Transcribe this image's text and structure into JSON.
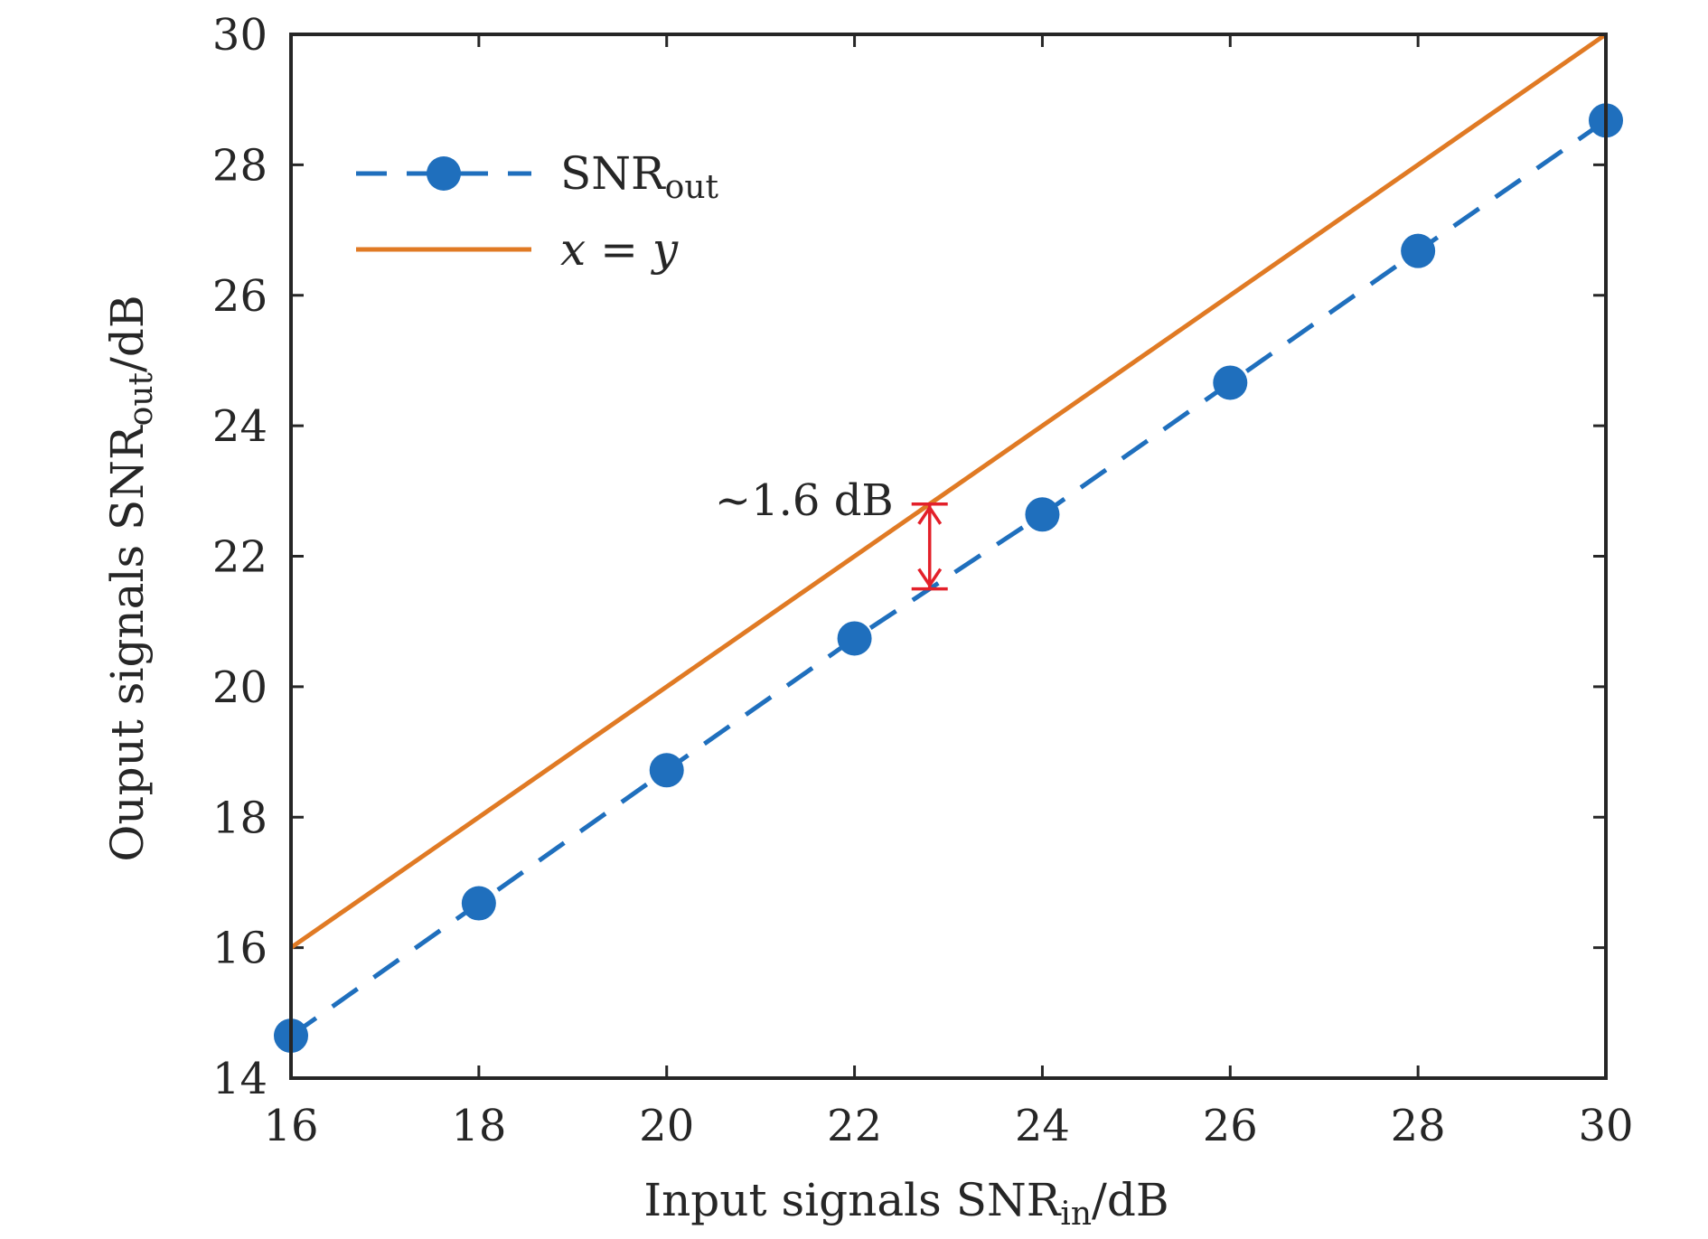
{
  "chart_data": {
    "type": "line",
    "xlabel": {
      "prefix": "Input signals SNR",
      "sub": "in",
      "suffix": "/dB"
    },
    "ylabel": {
      "prefix": "Ouput signals SNR",
      "sub": "out",
      "suffix": "/dB"
    },
    "xlim": [
      16,
      30
    ],
    "ylim": [
      14,
      30
    ],
    "xticks": [
      "16",
      "18",
      "20",
      "22",
      "24",
      "26",
      "28",
      "30"
    ],
    "yticks": [
      "14",
      "16",
      "18",
      "20",
      "22",
      "24",
      "26",
      "28",
      "30"
    ],
    "grid": false,
    "legend_position": "top-left",
    "series": [
      {
        "name": "SNR",
        "name_sub": "out",
        "color": "#1f6fbd",
        "style": "dashed-with-markers",
        "x": [
          16,
          18,
          20,
          22,
          24,
          26,
          28,
          30
        ],
        "y": [
          14.65,
          16.68,
          18.72,
          20.74,
          22.64,
          24.66,
          26.68,
          28.68
        ]
      },
      {
        "name": "x = y",
        "color": "#e07a24",
        "style": "solid",
        "x": [
          16,
          30
        ],
        "y": [
          16,
          30
        ]
      }
    ],
    "annotation": {
      "text": "~1.6 dB",
      "color": "#e3202a",
      "x": 22.8,
      "y_top": 22.8,
      "y_bottom": 21.5
    }
  }
}
